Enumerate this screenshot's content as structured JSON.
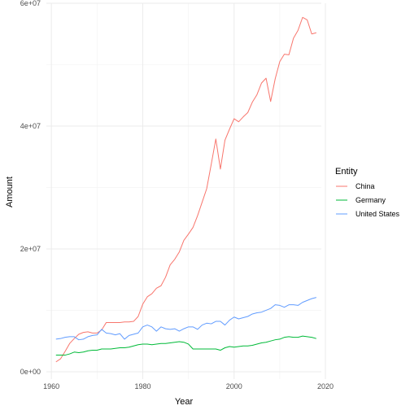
{
  "chart_data": {
    "type": "line",
    "xlabel": "Year",
    "ylabel": "Amount",
    "xlim": [
      1958.9,
      2019.1
    ],
    "ylim": [
      -1200000,
      60000000
    ],
    "x_ticks": [
      1960,
      1980,
      2000,
      2020
    ],
    "x_tick_labels": [
      "1960",
      "1980",
      "2000",
      "2020"
    ],
    "y_ticks": [
      0,
      20000000,
      40000000,
      60000000
    ],
    "y_tick_labels": [
      "0e+00",
      "2e+07",
      "4e+07",
      "6e+07"
    ],
    "grid": true,
    "legend": {
      "title": "Entity",
      "position": "right"
    },
    "x": [
      1961,
      1962,
      1963,
      1964,
      1965,
      1966,
      1967,
      1968,
      1969,
      1970,
      1971,
      1972,
      1973,
      1974,
      1975,
      1976,
      1977,
      1978,
      1979,
      1980,
      1981,
      1982,
      1983,
      1984,
      1985,
      1986,
      1987,
      1988,
      1989,
      1990,
      1991,
      1992,
      1993,
      1994,
      1995,
      1996,
      1997,
      1998,
      1999,
      2000,
      2001,
      2002,
      2003,
      2004,
      2005,
      2006,
      2007,
      2008,
      2009,
      2010,
      2011,
      2012,
      2013,
      2014,
      2015,
      2016,
      2017,
      2018
    ],
    "series": [
      {
        "name": "China",
        "color": "#F8766D",
        "values": [
          1600000,
          2100000,
          3300000,
          4600000,
          5400000,
          6100000,
          6400000,
          6500000,
          6300000,
          6300000,
          6800000,
          8000000,
          8000000,
          8000000,
          8000000,
          8100000,
          8100000,
          8200000,
          9000000,
          11000000,
          12200000,
          12700000,
          13600000,
          14000000,
          15400000,
          17400000,
          18300000,
          19500000,
          21400000,
          22400000,
          23500000,
          25400000,
          27600000,
          29800000,
          33800000,
          37900000,
          33000000,
          37700000,
          39500000,
          41200000,
          40700000,
          41500000,
          42200000,
          43900000,
          45100000,
          47000000,
          47800000,
          44000000,
          47700000,
          50500000,
          51700000,
          51600000,
          54300000,
          55600000,
          57700000,
          57300000,
          55000000,
          55200000
        ]
      },
      {
        "name": "Germany",
        "color": "#00BA38",
        "values": [
          2700000,
          2700000,
          2700000,
          2900000,
          3200000,
          3100000,
          3200000,
          3400000,
          3500000,
          3500000,
          3700000,
          3700000,
          3700000,
          3800000,
          3900000,
          3900000,
          4000000,
          4200000,
          4400000,
          4500000,
          4500000,
          4400000,
          4500000,
          4600000,
          4600000,
          4700000,
          4800000,
          4900000,
          4800000,
          4500000,
          3700000,
          3700000,
          3700000,
          3700000,
          3700000,
          3700000,
          3500000,
          3900000,
          4100000,
          4000000,
          4100000,
          4200000,
          4200000,
          4300000,
          4500000,
          4700000,
          4800000,
          5000000,
          5200000,
          5300000,
          5600000,
          5700000,
          5600000,
          5600000,
          5800000,
          5700000,
          5600000,
          5400000
        ]
      },
      {
        "name": "United States",
        "color": "#619CFF",
        "values": [
          5300000,
          5400000,
          5600000,
          5700000,
          5700000,
          5200000,
          5300000,
          5700000,
          5900000,
          6000000,
          6900000,
          6300000,
          6200000,
          6000000,
          6200000,
          5300000,
          5900000,
          6100000,
          6300000,
          7300000,
          7600000,
          7300000,
          6600000,
          7300000,
          7000000,
          6900000,
          7000000,
          6600000,
          7000000,
          7300000,
          7300000,
          6900000,
          7600000,
          7900000,
          7800000,
          8200000,
          8200000,
          7600000,
          8400000,
          8900000,
          8600000,
          8800000,
          9000000,
          9400000,
          9600000,
          9700000,
          10000000,
          10300000,
          10900000,
          10800000,
          10500000,
          10900000,
          10900000,
          10800000,
          11300000,
          11600000,
          11900000,
          12100000
        ]
      }
    ]
  }
}
